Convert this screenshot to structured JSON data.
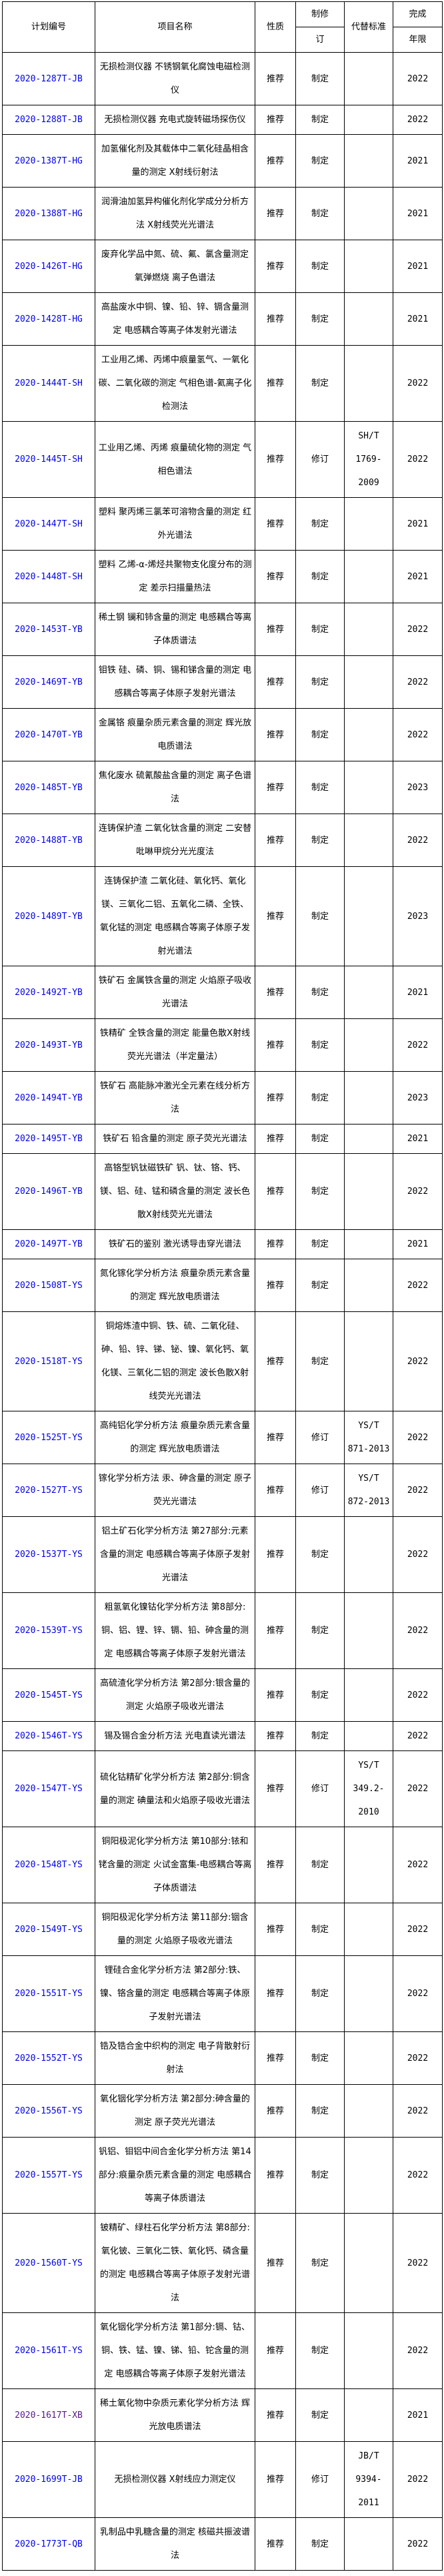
{
  "table": {
    "border_color": "#000000",
    "link_color": "#0000EE",
    "visited_link_color": "#551A8B",
    "header": {
      "plan_no": "计划编号",
      "project_name": "项目名称",
      "nature": "性质",
      "revision_top": "制修",
      "revision_bottom": "订",
      "replaced_standard": "代替标准",
      "completion_top": "完成",
      "completion_bottom": "年限"
    },
    "rows": [
      {
        "plan_no": "2020-1287T-JB",
        "project_name": "无损检测仪器 不锈钢氧化腐蚀电磁检测仪",
        "nature": "推荐",
        "revision": "制定",
        "replaced_standard": "",
        "year": "2022",
        "visited": false
      },
      {
        "plan_no": "2020-1288T-JB",
        "project_name": "无损检测仪器 充电式旋转磁场探伤仪",
        "nature": "推荐",
        "revision": "制定",
        "replaced_standard": "",
        "year": "2022",
        "visited": false
      },
      {
        "plan_no": "2020-1387T-HG",
        "project_name": "加氢催化剂及其载体中二氧化硅晶相含量的测定 X射线衍射法",
        "nature": "推荐",
        "revision": "制定",
        "replaced_standard": "",
        "year": "2021",
        "visited": false
      },
      {
        "plan_no": "2020-1388T-HG",
        "project_name": "润滑油加氢异构催化剂化学成分分析方法 X射线荧光光谱法",
        "nature": "推荐",
        "revision": "制定",
        "replaced_standard": "",
        "year": "2021",
        "visited": false
      },
      {
        "plan_no": "2020-1426T-HG",
        "project_name": "废弃化学品中氮、硫、氟、氯含量测定 氧弹燃烧 离子色谱法",
        "nature": "推荐",
        "revision": "制定",
        "replaced_standard": "",
        "year": "2021",
        "visited": false
      },
      {
        "plan_no": "2020-1428T-HG",
        "project_name": "高盐废水中铜、镍、铅、锌、镉含量测定 电感耦合等离子体发射光谱法",
        "nature": "推荐",
        "revision": "制定",
        "replaced_standard": "",
        "year": "2021",
        "visited": false
      },
      {
        "plan_no": "2020-1444T-SH",
        "project_name": "工业用乙烯、丙烯中痕量氢气、一氧化碳、二氧化碳的测定 气相色谱-氦离子化检测法",
        "nature": "推荐",
        "revision": "制定",
        "replaced_standard": "",
        "year": "2022",
        "visited": false
      },
      {
        "plan_no": "2020-1445T-SH",
        "project_name": "工业用乙烯、丙烯 痕量硫化物的测定 气相色谱法",
        "nature": "推荐",
        "revision": "修订",
        "replaced_standard": "SH/T 1769-2009",
        "year": "2022",
        "visited": false
      },
      {
        "plan_no": "2020-1447T-SH",
        "project_name": "塑料 聚丙烯三氯苯可溶物含量的测定 红外光谱法",
        "nature": "推荐",
        "revision": "制定",
        "replaced_standard": "",
        "year": "2021",
        "visited": false
      },
      {
        "plan_no": "2020-1448T-SH",
        "project_name": "塑料 乙烯-α-烯烃共聚物支化度分布的测定 差示扫描量热法",
        "nature": "推荐",
        "revision": "制定",
        "replaced_standard": "",
        "year": "2021",
        "visited": false
      },
      {
        "plan_no": "2020-1453T-YB",
        "project_name": "稀土钢 镧和铈含量的测定 电感耦合等离子体质谱法",
        "nature": "推荐",
        "revision": "制定",
        "replaced_standard": "",
        "year": "2022",
        "visited": false
      },
      {
        "plan_no": "2020-1469T-YB",
        "project_name": "钼铁 硅、磷、铜、锡和锑含量的测定 电感耦合等离子体原子发射光谱法",
        "nature": "推荐",
        "revision": "制定",
        "replaced_standard": "",
        "year": "2022",
        "visited": false
      },
      {
        "plan_no": "2020-1470T-YB",
        "project_name": "金属铬 痕量杂质元素含量的测定 辉光放电质谱法",
        "nature": "推荐",
        "revision": "制定",
        "replaced_standard": "",
        "year": "2022",
        "visited": false
      },
      {
        "plan_no": "2020-1485T-YB",
        "project_name": "焦化废水 硫氰酸盐含量的测定 离子色谱法",
        "nature": "推荐",
        "revision": "制定",
        "replaced_standard": "",
        "year": "2023",
        "visited": false
      },
      {
        "plan_no": "2020-1488T-YB",
        "project_name": "连铸保护渣 二氧化钛含量的测定 二安替吡啉甲烷分光光度法",
        "nature": "推荐",
        "revision": "制定",
        "replaced_standard": "",
        "year": "2022",
        "visited": false
      },
      {
        "plan_no": "2020-1489T-YB",
        "project_name": "连铸保护渣 二氧化硅、氧化钙、氧化镁、三氧化二铝、五氧化二磷、全铁、氧化锰的测定 电感耦合等离子体原子发射光谱法",
        "nature": "推荐",
        "revision": "制定",
        "replaced_standard": "",
        "year": "2023",
        "visited": false
      },
      {
        "plan_no": "2020-1492T-YB",
        "project_name": "铁矿石 金属铁含量的测定 火焰原子吸收光谱法",
        "nature": "推荐",
        "revision": "制定",
        "replaced_standard": "",
        "year": "2021",
        "visited": false
      },
      {
        "plan_no": "2020-1493T-YB",
        "project_name": "铁精矿 全铁含量的测定 能量色散X射线荧光光谱法（半定量法）",
        "nature": "推荐",
        "revision": "制定",
        "replaced_standard": "",
        "year": "2022",
        "visited": false
      },
      {
        "plan_no": "2020-1494T-YB",
        "project_name": "铁矿石 高能脉冲激光全元素在线分析方法",
        "nature": "推荐",
        "revision": "制定",
        "replaced_standard": "",
        "year": "2023",
        "visited": false
      },
      {
        "plan_no": "2020-1495T-YB",
        "project_name": "铁矿石 铅含量的测定 原子荧光光谱法",
        "nature": "推荐",
        "revision": "制定",
        "replaced_standard": "",
        "year": "2021",
        "visited": false
      },
      {
        "plan_no": "2020-1496T-YB",
        "project_name": "高铬型钒钛磁铁矿 钒、钛、铬、钙、镁、铝、硅、锰和磷含量的测定 波长色散X射线荧光光谱法",
        "nature": "推荐",
        "revision": "制定",
        "replaced_standard": "",
        "year": "2022",
        "visited": false
      },
      {
        "plan_no": "2020-1497T-YB",
        "project_name": "铁矿石的鉴别 激光诱导击穿光谱法",
        "nature": "推荐",
        "revision": "制定",
        "replaced_standard": "",
        "year": "2021",
        "visited": false
      },
      {
        "plan_no": "2020-1508T-YS",
        "project_name": "氮化镓化学分析方法 痕量杂质元素含量的测定 辉光放电质谱法",
        "nature": "推荐",
        "revision": "制定",
        "replaced_standard": "",
        "year": "2022",
        "visited": false
      },
      {
        "plan_no": "2020-1518T-YS",
        "project_name": "铜熔炼渣中铜、铁、硫、二氧化硅、砷、铅、锌、锑、铋、镍、氧化钙、氧化镁、三氧化二铝的测定 波长色散X射线荧光光谱法",
        "nature": "推荐",
        "revision": "制定",
        "replaced_standard": "",
        "year": "2022",
        "visited": false
      },
      {
        "plan_no": "2020-1525T-YS",
        "project_name": "高纯铝化学分析方法 痕量杂质元素含量的测定 辉光放电质谱法",
        "nature": "推荐",
        "revision": "修订",
        "replaced_standard": "YS/T 871-2013",
        "year": "2022",
        "visited": false
      },
      {
        "plan_no": "2020-1527T-YS",
        "project_name": "镓化学分析方法 汞、砷含量的测定 原子荧光光谱法",
        "nature": "推荐",
        "revision": "修订",
        "replaced_standard": "YS/T 872-2013",
        "year": "2022",
        "visited": false
      },
      {
        "plan_no": "2020-1537T-YS",
        "project_name": "铝土矿石化学分析方法 第27部分:元素含量的测定 电感耦合等离子体原子发射光谱法",
        "nature": "推荐",
        "revision": "制定",
        "replaced_standard": "",
        "year": "2022",
        "visited": false
      },
      {
        "plan_no": "2020-1539T-YS",
        "project_name": "粗氢氧化镍钴化学分析方法 第8部分:铜、铝、锂、锌、镉、铅、砷含量的测定 电感耦合等离子体原子发射光谱法",
        "nature": "推荐",
        "revision": "制定",
        "replaced_standard": "",
        "year": "2022",
        "visited": false
      },
      {
        "plan_no": "2020-1545T-YS",
        "project_name": "高硫渣化学分析方法 第2部分:银含量的测定 火焰原子吸收光谱法",
        "nature": "推荐",
        "revision": "制定",
        "replaced_standard": "",
        "year": "2022",
        "visited": false
      },
      {
        "plan_no": "2020-1546T-YS",
        "project_name": "锡及锡合金分析方法 光电直读光谱法",
        "nature": "推荐",
        "revision": "制定",
        "replaced_standard": "",
        "year": "2022",
        "visited": false
      },
      {
        "plan_no": "2020-1547T-YS",
        "project_name": "硫化钴精矿化学分析方法 第2部分:铜含量的测定 碘量法和火焰原子吸收光谱法",
        "nature": "推荐",
        "revision": "修订",
        "replaced_standard": "YS/T 349.2-2010",
        "year": "2022",
        "visited": false
      },
      {
        "plan_no": "2020-1548T-YS",
        "project_name": "铜阳极泥化学分析方法 第10部分:铱和铑含量的测定 火试金富集-电感耦合等离子体质谱法",
        "nature": "推荐",
        "revision": "制定",
        "replaced_standard": "",
        "year": "2022",
        "visited": false
      },
      {
        "plan_no": "2020-1549T-YS",
        "project_name": "铜阳极泥化学分析方法 第11部分:铟含量的测定 火焰原子吸收光谱法",
        "nature": "推荐",
        "revision": "制定",
        "replaced_standard": "",
        "year": "2022",
        "visited": false
      },
      {
        "plan_no": "2020-1551T-YS",
        "project_name": "锂硅合金化学分析方法 第2部分:铁、镍、铬含量的测定 电感耦合等离子体原子发射光谱法",
        "nature": "推荐",
        "revision": "制定",
        "replaced_standard": "",
        "year": "2022",
        "visited": false
      },
      {
        "plan_no": "2020-1552T-YS",
        "project_name": "锆及锆合金中织构的测定 电子背散射衍射法",
        "nature": "推荐",
        "revision": "制定",
        "replaced_standard": "",
        "year": "2022",
        "visited": false
      },
      {
        "plan_no": "2020-1556T-YS",
        "project_name": "氧化铟化学分析方法 第2部分:砷含量的测定 原子荧光光谱法",
        "nature": "推荐",
        "revision": "制定",
        "replaced_standard": "",
        "year": "2022",
        "visited": false
      },
      {
        "plan_no": "2020-1557T-YS",
        "project_name": "钒铝、钼铝中间合金化学分析方法 第14部分:痕量杂质元素含量的测定 电感耦合等离子体质谱法",
        "nature": "推荐",
        "revision": "制定",
        "replaced_standard": "",
        "year": "2022",
        "visited": false
      },
      {
        "plan_no": "2020-1560T-YS",
        "project_name": "铍精矿、绿柱石化学分析方法 第8部分:氧化铍、三氧化二铁、氧化钙、磷含量的测定 电感耦合等离子体原子发射光谱法",
        "nature": "推荐",
        "revision": "制定",
        "replaced_standard": "",
        "year": "2022",
        "visited": false
      },
      {
        "plan_no": "2020-1561T-YS",
        "project_name": "氧化铟化学分析方法 第1部分:镉、钴、铜、铁、锰、镍、锑、铅、铊含量的测定 电感耦合等离子体原子发射光谱法",
        "nature": "推荐",
        "revision": "制定",
        "replaced_standard": "",
        "year": "2022",
        "visited": false
      },
      {
        "plan_no": "2020-1617T-XB",
        "project_name": "稀土氧化物中杂质元素化学分析方法 辉光放电质谱法",
        "nature": "推荐",
        "revision": "制定",
        "replaced_standard": "",
        "year": "2021",
        "visited": true
      },
      {
        "plan_no": "2020-1699T-JB",
        "project_name": "无损检测仪器 X射线应力测定仪",
        "nature": "推荐",
        "revision": "修订",
        "replaced_standard": "JB/T 9394-2011",
        "year": "2022",
        "visited": false
      },
      {
        "plan_no": "2020-1773T-QB",
        "project_name": "乳制品中乳糖含量的测定 核磁共振波谱法",
        "nature": "推荐",
        "revision": "制定",
        "replaced_standard": "",
        "year": "2022",
        "visited": false
      }
    ]
  }
}
